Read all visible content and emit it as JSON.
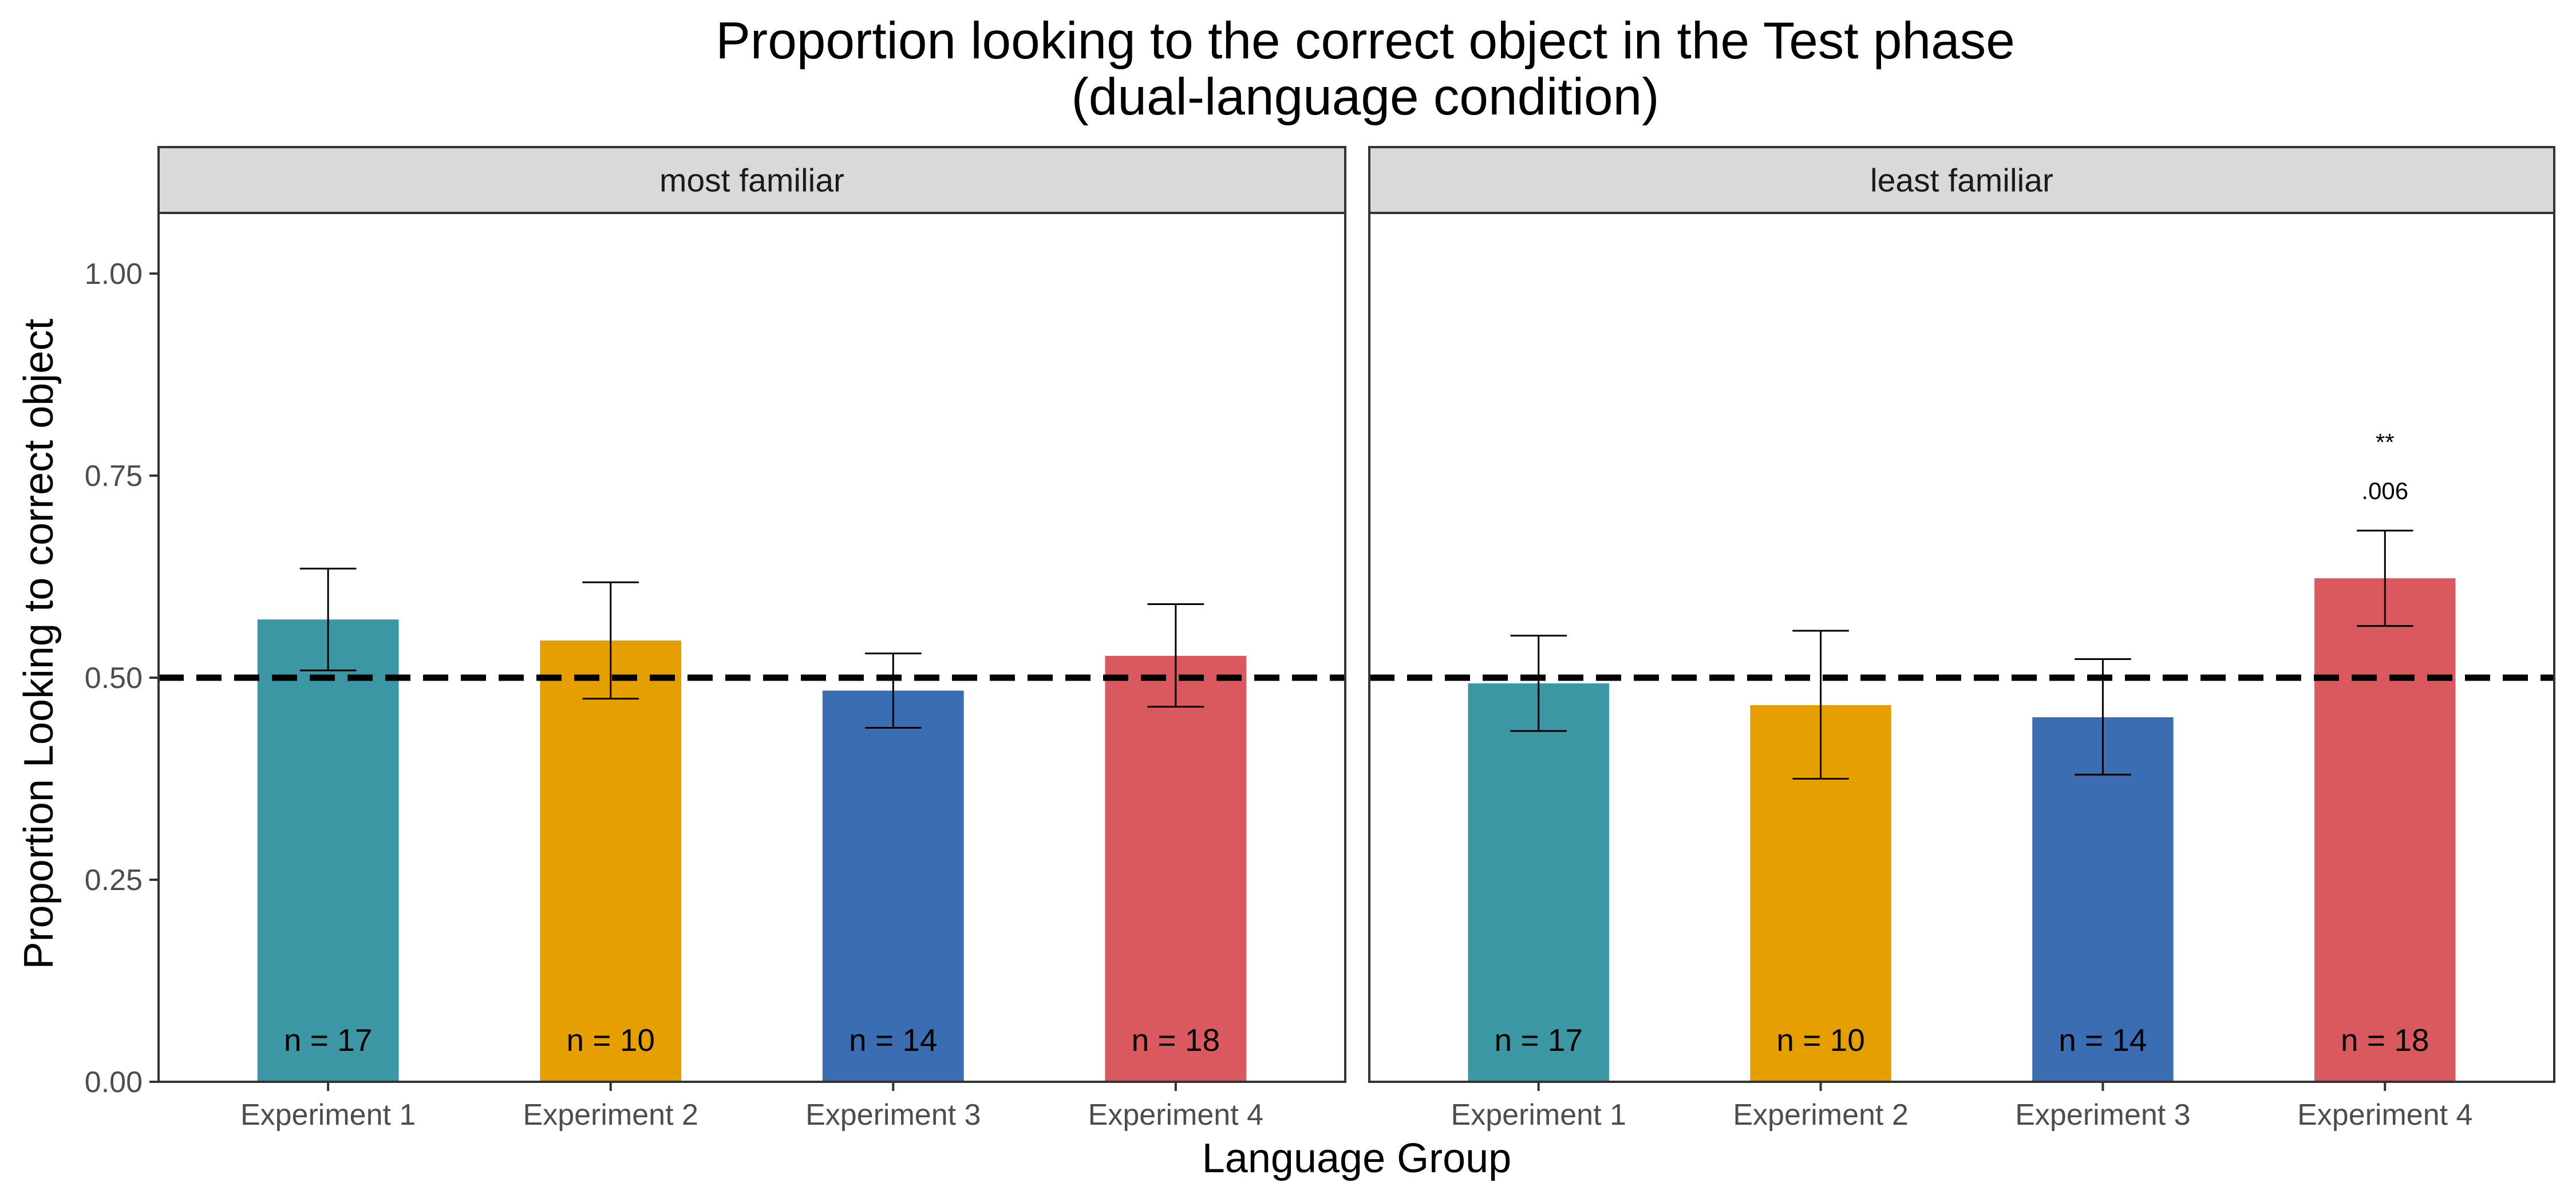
{
  "chart_data": {
    "type": "bar",
    "title_line1": "Proportion looking to the correct object in the Test phase",
    "title_line2": "(dual-language condition)",
    "xlabel": "Language Group",
    "ylabel": "Proportion Looking to correct object",
    "ylim": [
      0,
      1.075
    ],
    "yticks": [
      0,
      0.25,
      0.5,
      0.75,
      1.0
    ],
    "ytick_labels": [
      "0.00",
      "0.25",
      "0.50",
      "0.75",
      "1.00"
    ],
    "reference_line": 0.5,
    "grid": false,
    "categories": [
      "Experiment 1",
      "Experiment 2",
      "Experiment 3",
      "Experiment 4"
    ],
    "colors": [
      "#3a97a3",
      "#e69f00",
      "#3b6db3",
      "#d9595e"
    ],
    "facets": [
      {
        "label": "most familiar",
        "values": [
          0.572,
          0.546,
          0.484,
          0.527
        ],
        "err_low": [
          0.509,
          0.474,
          0.438,
          0.464
        ],
        "err_high": [
          0.635,
          0.618,
          0.53,
          0.591
        ],
        "n_labels": [
          "n = 17",
          "n = 10",
          "n = 14",
          "n = 18"
        ],
        "annotations": []
      },
      {
        "label": "least familiar",
        "values": [
          0.493,
          0.466,
          0.451,
          0.623
        ],
        "err_low": [
          0.434,
          0.375,
          0.38,
          0.564
        ],
        "err_high": [
          0.552,
          0.558,
          0.523,
          0.682
        ],
        "n_labels": [
          "n = 17",
          "n = 10",
          "n = 14",
          "n = 18"
        ],
        "annotations": [
          {
            "category_index": 3,
            "stars": "**",
            "p_value": ".006"
          }
        ]
      }
    ]
  }
}
